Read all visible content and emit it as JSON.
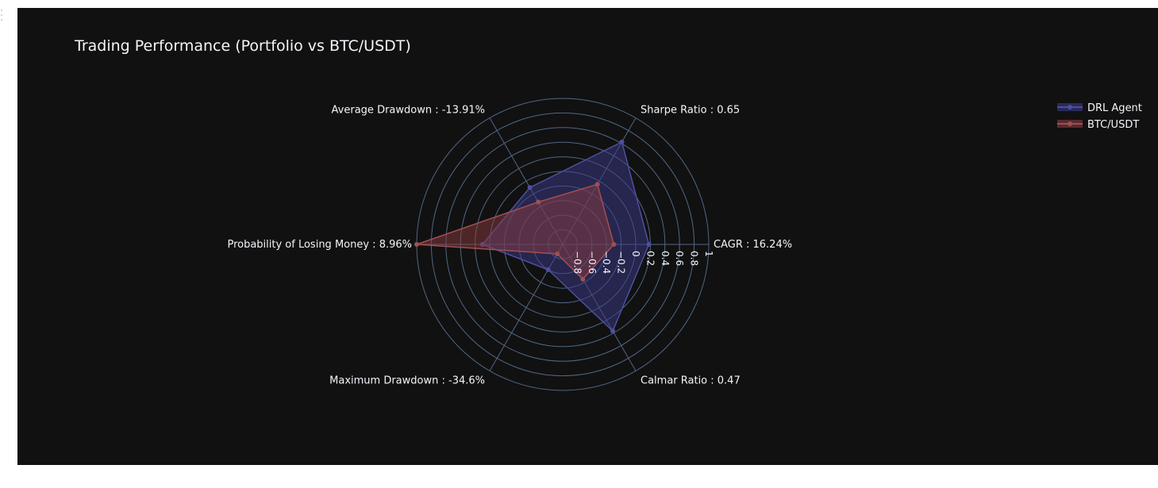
{
  "chart_data": {
    "type": "radar",
    "title": "Trading Performance (Portfolio vs BTC/USDT)",
    "categories": [
      "CAGR : 16.24%",
      "Sharpe Ratio : 0.65",
      "Average Drawdown : -13.91%",
      "Probability of Losing Money : 8.96%",
      "Maximum Drawdown : -34.6%",
      "Calmar Ratio : 0.47"
    ],
    "radial_range": [
      -1,
      1
    ],
    "radial_ticks": [
      -0.8,
      -0.6,
      -0.4,
      -0.2,
      0,
      0.2,
      0.4,
      0.6,
      0.8,
      1
    ],
    "radial_tick_labels": [
      "−0.8",
      "−0.6",
      "−0.4",
      "−0.2",
      "0",
      "0.2",
      "0.4",
      "0.6",
      "0.8",
      "1"
    ],
    "grid": true,
    "legend_position": "top-right",
    "series": [
      {
        "name": "DRL Agent",
        "values": [
          0.18,
          0.62,
          -0.1,
          0.1,
          -0.6,
          0.37
        ],
        "line_color": "#4f4fa0",
        "fill_color": "#3b3b8c"
      },
      {
        "name": "BTC/USDT",
        "values": [
          -0.3,
          -0.05,
          -0.33,
          1.0,
          -0.85,
          -0.45
        ],
        "line_color": "#a04f52",
        "fill_color": "#8c3b40"
      }
    ]
  },
  "colors": {
    "background": "#111111",
    "grid": "#506784",
    "text": "#f2f5fa"
  }
}
